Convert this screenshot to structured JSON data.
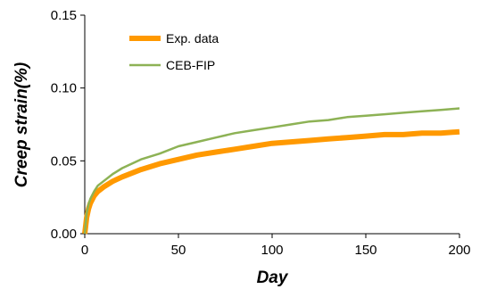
{
  "chart_data": {
    "type": "line",
    "xlabel": "Day",
    "ylabel": "Creep strain(%)",
    "xlim": [
      0,
      200
    ],
    "ylim": [
      0,
      0.15
    ],
    "x_ticks": [
      0,
      50,
      100,
      150,
      200
    ],
    "x_tick_labels": [
      "0",
      "50",
      "100",
      "150",
      "200"
    ],
    "y_ticks": [
      0,
      0.05,
      0.1,
      0.15
    ],
    "y_tick_labels": [
      "0.00",
      "0.05",
      "0.10",
      "0.15"
    ],
    "grid": false,
    "legend_position": "top-left",
    "series": [
      {
        "name": "Exp. data",
        "color": "#FF9900",
        "x": [
          0,
          1,
          2,
          3,
          5,
          7,
          10,
          15,
          20,
          30,
          40,
          50,
          60,
          70,
          80,
          90,
          100,
          110,
          120,
          130,
          140,
          150,
          160,
          170,
          180,
          190,
          200
        ],
        "y": [
          0,
          0.011,
          0.017,
          0.021,
          0.026,
          0.029,
          0.032,
          0.036,
          0.039,
          0.044,
          0.048,
          0.051,
          0.054,
          0.056,
          0.058,
          0.06,
          0.062,
          0.063,
          0.064,
          0.065,
          0.066,
          0.067,
          0.068,
          0.068,
          0.069,
          0.069,
          0.07
        ]
      },
      {
        "name": "CEB-FIP",
        "color": "#8DB255",
        "x": [
          0,
          1,
          2,
          3,
          5,
          7,
          10,
          15,
          20,
          30,
          40,
          50,
          60,
          70,
          80,
          90,
          100,
          110,
          120,
          130,
          140,
          150,
          160,
          170,
          180,
          190,
          200
        ],
        "y": [
          0,
          0.014,
          0.02,
          0.024,
          0.029,
          0.033,
          0.036,
          0.041,
          0.045,
          0.051,
          0.055,
          0.06,
          0.063,
          0.066,
          0.069,
          0.071,
          0.073,
          0.075,
          0.077,
          0.078,
          0.08,
          0.081,
          0.082,
          0.083,
          0.084,
          0.085,
          0.086
        ]
      }
    ]
  }
}
